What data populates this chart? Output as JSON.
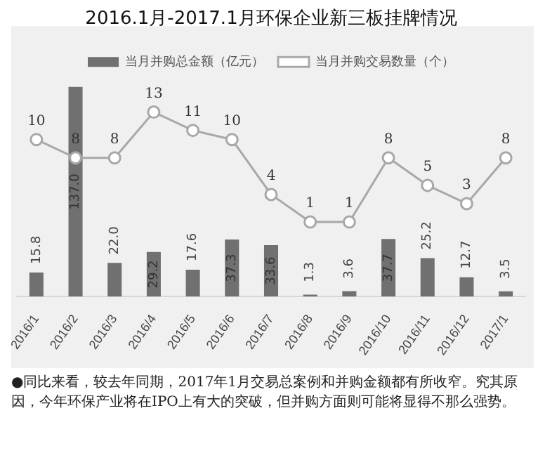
{
  "chart_data": {
    "type": "bar",
    "title": "2016.1月-2017.1月环保企业新三板挂牌情况",
    "categories": [
      "2016/1",
      "2016/2",
      "2016/3",
      "2016/4",
      "2016/5",
      "2016/6",
      "2016/7",
      "2016/8",
      "2016/9",
      "2016/10",
      "2016/11",
      "2016/12",
      "2017/1"
    ],
    "series": [
      {
        "name": "当月并购总金额（亿元）",
        "color": "#707070",
        "values": [
          15.8,
          137.0,
          22.0,
          29.2,
          17.6,
          37.3,
          33.6,
          1.3,
          3.6,
          37.7,
          25.2,
          12.7,
          3.5
        ],
        "value_labels": [
          "15.8",
          "137.0",
          "22.0",
          "29.2",
          "17.6",
          "37.3",
          "33.6",
          "1.3",
          "3.6",
          "37.7",
          "25.2",
          "12.7",
          "3.5"
        ]
      },
      {
        "name": "当月并购交易数量（个）",
        "type": "line",
        "axis": "y2",
        "color": "#a8a8a8",
        "values": [
          10,
          8,
          8,
          13,
          11,
          10,
          4,
          1,
          1,
          8,
          5,
          3,
          8
        ]
      }
    ],
    "data_labels": true,
    "legend": "top",
    "marker": "circle",
    "grid": false,
    "annotations": [
      "●同比来看，较去年同期，2017年1月交易总案例和并购金额都有所收窄。究其原因，今年环保产业将在IPO上有大的突破，但并购方面则可能将显得不那么强势。"
    ]
  }
}
